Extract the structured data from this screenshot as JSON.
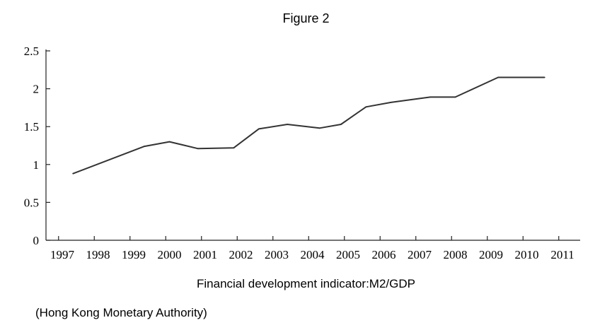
{
  "figure_title": "Figure 2",
  "caption": "Financial development indicator:M2/GDP",
  "source_note": "(Hong Kong Monetary Authority)",
  "colors": {
    "line": "#333333",
    "axis": "#222222"
  },
  "chart_data": {
    "type": "line",
    "title": "",
    "xlabel": "",
    "ylabel": "",
    "categories": [
      "1997",
      "1998",
      "1999",
      "2000",
      "2001",
      "2002",
      "2003",
      "2004",
      "2005",
      "2006",
      "2007",
      "2008",
      "2009",
      "2010",
      "2011"
    ],
    "y_ticks": [
      "0",
      "0.5",
      "1",
      "1.5",
      "2",
      "2.5"
    ],
    "ylim": [
      0,
      2.5
    ],
    "grid": false,
    "series": [
      {
        "x": [
          1997.3,
          1999.3,
          2000.0,
          2000.8,
          2001.8,
          2002.5,
          2003.3,
          2004.2,
          2004.8,
          2005.5,
          2006.2,
          2007.3,
          2008.0,
          2009.2,
          2009.8,
          2010.5
        ],
        "values": [
          0.88,
          1.24,
          1.3,
          1.21,
          1.22,
          1.47,
          1.53,
          1.48,
          1.53,
          1.76,
          1.82,
          1.89,
          1.89,
          2.15,
          2.15,
          2.15
        ]
      }
    ]
  }
}
